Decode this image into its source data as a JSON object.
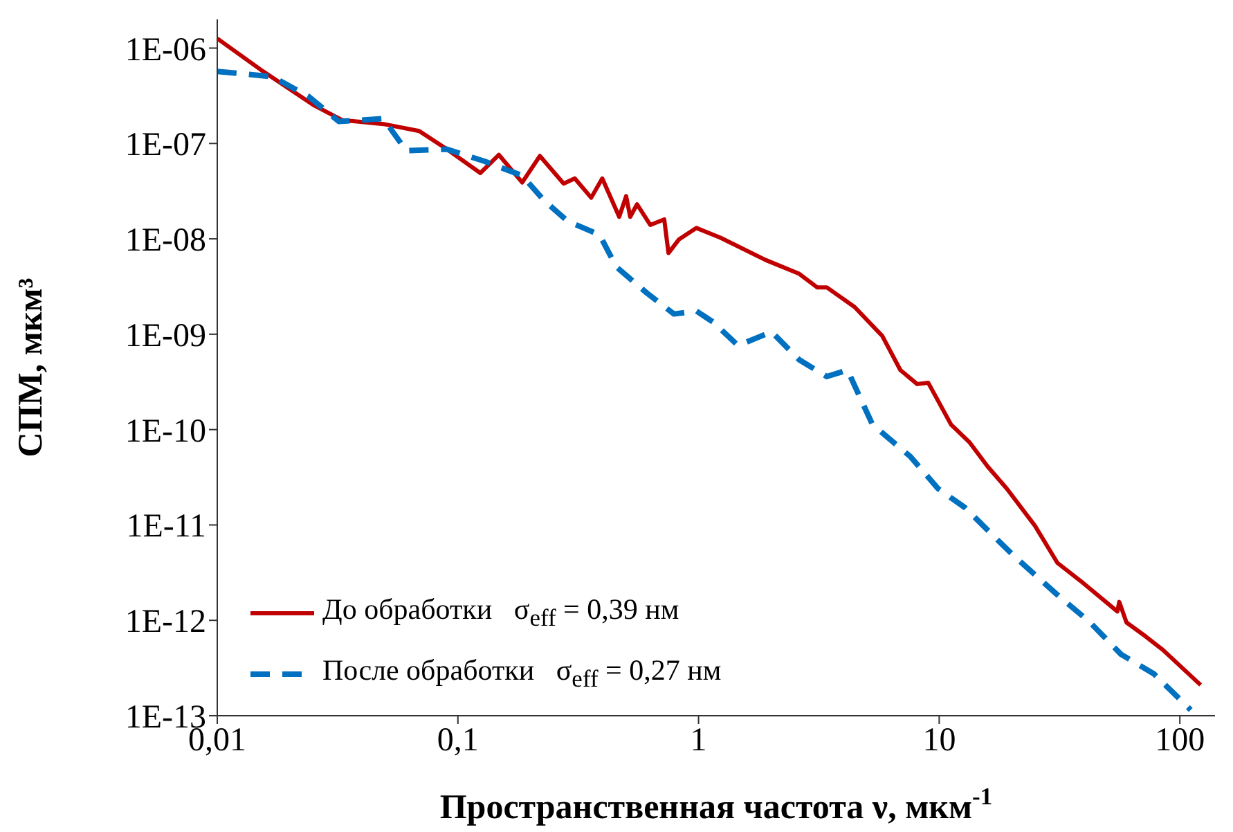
{
  "chart_data": {
    "type": "line",
    "xlabel": "Пространственная частота ν, мкм$^{-1}$",
    "ylabel": "СПМ, мкм³",
    "log": "xy",
    "xlim": [
      0.01,
      140
    ],
    "ylim": [
      1e-13,
      2e-06
    ],
    "xticks": [
      {
        "value": 0.01,
        "label": "0,01"
      },
      {
        "value": 0.1,
        "label": "0,1"
      },
      1,
      10,
      100
    ],
    "yticks": [
      {
        "value": 1e-13,
        "label": "1E-13"
      },
      {
        "value": 1e-12,
        "label": "1E-12"
      },
      {
        "value": 1e-11,
        "label": "1E-11"
      },
      {
        "value": 1e-10,
        "label": "1E-10"
      },
      {
        "value": 1e-09,
        "label": "1E-09"
      },
      {
        "value": 1e-08,
        "label": "1E-08"
      },
      {
        "value": 1e-07,
        "label": "1E-07"
      },
      {
        "value": 1e-06,
        "label": "1E-06"
      }
    ],
    "grid": false,
    "legend": "bottom left",
    "marker": "none",
    "series": [
      {
        "name": "До обработки   σ$_{eff}$ = 0,39 нм",
        "color": "#c00000",
        "line_style": "solid",
        "x": [
          0.01,
          0.0155,
          0.0253,
          0.033,
          0.049,
          0.069,
          0.09,
          0.124,
          0.148,
          0.185,
          0.219,
          0.275,
          0.306,
          0.358,
          0.398,
          0.468,
          0.5,
          0.52,
          0.555,
          0.63,
          0.72,
          0.75,
          0.83,
          0.98,
          1.23,
          1.9,
          2.62,
          3.11,
          3.41,
          4.45,
          5.8,
          6.9,
          8.1,
          9.0,
          11.2,
          13.4,
          15.9,
          19.1,
          25,
          31,
          38.6,
          55,
          56,
          60,
          72,
          85,
          122
        ],
        "values": [
          1.26e-06,
          5.7e-07,
          2.5e-07,
          1.76e-07,
          1.6e-07,
          1.35e-07,
          8.7e-08,
          4.9e-08,
          7.6e-08,
          3.9e-08,
          7.4e-08,
          3.8e-08,
          4.3e-08,
          2.7e-08,
          4.3e-08,
          1.7e-08,
          2.8e-08,
          1.7e-08,
          2.3e-08,
          1.4e-08,
          1.6e-08,
          7.1e-09,
          9.9e-09,
          1.3e-08,
          1.03e-08,
          6e-09,
          4.3e-09,
          3.1e-09,
          3.1e-09,
          1.93e-09,
          9.6e-10,
          4.2e-10,
          3e-10,
          3.1e-10,
          1.13e-10,
          7.3e-11,
          4.1e-11,
          2.4e-11,
          9.8e-12,
          4e-12,
          2.6e-12,
          1.24e-12,
          1.56e-12,
          9.5e-13,
          6.8e-13,
          4.9e-13,
          2.1e-13
        ]
      },
      {
        "name": "После обработки   σ$_{eff}$ = 0,27 нм",
        "color": "#0070c0",
        "line_style": "dashed",
        "x": [
          0.01,
          0.017,
          0.024,
          0.032,
          0.049,
          0.061,
          0.09,
          0.129,
          0.185,
          0.229,
          0.286,
          0.388,
          0.455,
          0.61,
          0.79,
          0.98,
          1.15,
          1.46,
          2.01,
          2.62,
          3.41,
          4.16,
          5.28,
          7.6,
          9.9,
          12.8,
          16.7,
          20.7,
          31,
          42.4,
          57,
          78,
          111
        ],
        "values": [
          5.7e-07,
          5e-07,
          3.1e-07,
          1.7e-07,
          1.82e-07,
          8.4e-08,
          8.7e-08,
          6.5e-08,
          4.6e-08,
          2.5e-08,
          1.53e-08,
          1.1e-08,
          5.1e-09,
          2.7e-09,
          1.63e-09,
          1.75e-09,
          1.34e-09,
          7.6e-10,
          1.06e-09,
          5.4e-10,
          3.6e-10,
          4.2e-10,
          1.13e-10,
          5.2e-11,
          2.4e-11,
          1.52e-11,
          7.8e-12,
          4.6e-12,
          1.85e-12,
          9.5e-13,
          4.4e-13,
          2.75e-13,
          1.15e-13
        ]
      }
    ]
  }
}
